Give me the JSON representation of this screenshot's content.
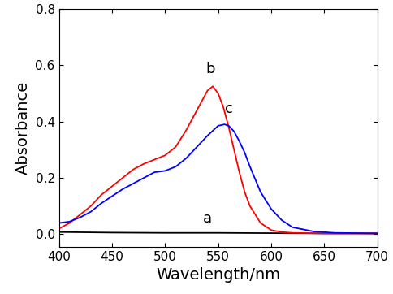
{
  "chart_data": {
    "type": "line",
    "x_label": "Wavelength/nm",
    "y_label": "Absorbance",
    "xlim": [
      400,
      700
    ],
    "xticks": [
      400,
      450,
      500,
      550,
      600,
      650,
      700
    ],
    "ylim": [
      -0.045,
      0.8
    ],
    "yticks": [
      {
        "value": 0.0,
        "label": "0.0"
      },
      {
        "value": 0.2,
        "label": "0.2"
      },
      {
        "value": 0.4,
        "label": "0.4"
      },
      {
        "value": 0.6,
        "label": "0.6"
      },
      {
        "value": 0.8,
        "label": "0.8"
      }
    ],
    "grid": false,
    "series": [
      {
        "name": "a",
        "color": "#000000",
        "x": [
          400,
          450,
          500,
          550,
          600,
          650,
          700
        ],
        "values": [
          0.008,
          0.006,
          0.005,
          0.005,
          0.004,
          0.003,
          0.003
        ]
      },
      {
        "name": "b",
        "color": "#ff0000",
        "x": [
          400,
          410,
          420,
          430,
          440,
          450,
          460,
          470,
          480,
          490,
          500,
          510,
          520,
          530,
          540,
          545,
          550,
          555,
          560,
          565,
          570,
          575,
          580,
          590,
          600,
          610,
          620,
          650,
          700
        ],
        "values": [
          0.02,
          0.04,
          0.07,
          0.1,
          0.14,
          0.17,
          0.2,
          0.23,
          0.25,
          0.265,
          0.28,
          0.31,
          0.37,
          0.44,
          0.51,
          0.525,
          0.5,
          0.45,
          0.38,
          0.3,
          0.22,
          0.15,
          0.1,
          0.04,
          0.015,
          0.008,
          0.005,
          0.003,
          0.003
        ]
      },
      {
        "name": "c",
        "color": "#0000ff",
        "x": [
          400,
          410,
          420,
          430,
          440,
          450,
          460,
          470,
          480,
          490,
          500,
          510,
          520,
          530,
          540,
          550,
          556,
          560,
          565,
          570,
          575,
          580,
          590,
          600,
          610,
          620,
          640,
          660,
          700
        ],
        "values": [
          0.04,
          0.045,
          0.06,
          0.08,
          0.11,
          0.135,
          0.16,
          0.18,
          0.2,
          0.22,
          0.225,
          0.24,
          0.27,
          0.31,
          0.35,
          0.385,
          0.39,
          0.385,
          0.365,
          0.33,
          0.29,
          0.24,
          0.15,
          0.09,
          0.05,
          0.025,
          0.01,
          0.005,
          0.003
        ]
      }
    ],
    "annotations": [
      {
        "text": "a",
        "x": 540,
        "y": 0.03
      },
      {
        "text": "b",
        "x": 543,
        "y": 0.56
      },
      {
        "text": "c",
        "x": 560,
        "y": 0.42
      }
    ]
  }
}
